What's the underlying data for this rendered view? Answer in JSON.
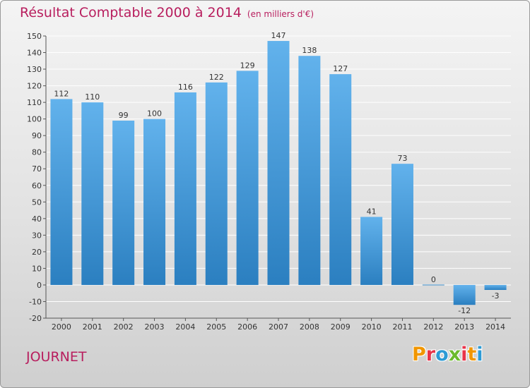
{
  "header": {
    "title": "Résultat Comptable 2000 à 2014",
    "subtitle": "(en milliers d'€)"
  },
  "footer": {
    "commune": "JOURNET",
    "logo_text": [
      "P",
      "r",
      "o",
      "x",
      "i",
      "t",
      "i"
    ]
  },
  "colors": {
    "title": "#b81e5e",
    "bar_top": "#62b2ec",
    "bar_bottom": "#2b7fc0",
    "grid": "#ffffff"
  },
  "chart_data": {
    "type": "bar",
    "title": "Résultat Comptable 2000 à 2014",
    "subtitle": "(en milliers d'€)",
    "xlabel": "",
    "ylabel": "",
    "categories": [
      "2000",
      "2001",
      "2002",
      "2003",
      "2004",
      "2005",
      "2006",
      "2007",
      "2008",
      "2009",
      "2010",
      "2011",
      "2012",
      "2013",
      "2014"
    ],
    "values": [
      112,
      110,
      99,
      100,
      116,
      122,
      129,
      147,
      138,
      127,
      41,
      73,
      0,
      -12,
      -3
    ],
    "ylim": [
      -20,
      150
    ],
    "yticks": [
      -20,
      -10,
      0,
      10,
      20,
      30,
      40,
      50,
      60,
      70,
      80,
      90,
      100,
      110,
      120,
      130,
      140,
      150
    ],
    "grid": true
  }
}
